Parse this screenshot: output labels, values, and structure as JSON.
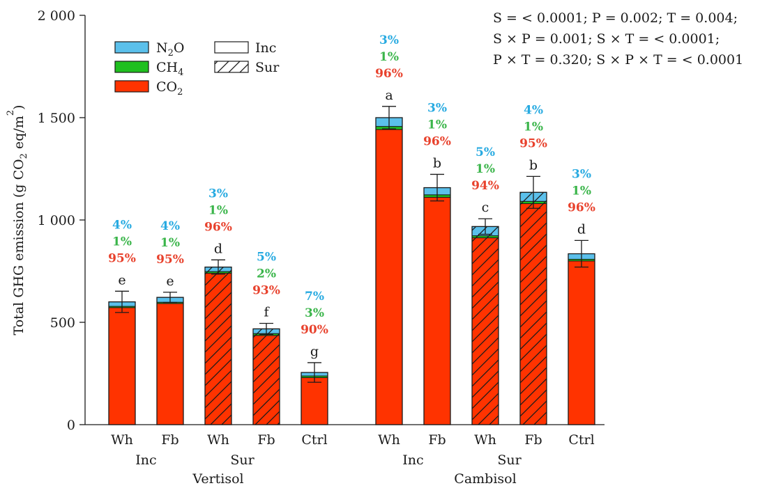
{
  "chart_data": {
    "type": "bar",
    "stacked": true,
    "ylabel": "Total GHG emission (g CO2 eq/m2)",
    "ylim": [
      0,
      2000
    ],
    "yticks": [
      0,
      500,
      1000,
      1500,
      2000
    ],
    "ytick_labels": [
      "0",
      "500",
      "1 000",
      "1 500",
      "2 000"
    ],
    "grid": false,
    "legend_position": "top-left",
    "stats_lines": [
      "S = < 0.0001; P = 0.002; T = 0.004;",
      "S × P = 0.001; S × T = < 0.0001;",
      "P × T = 0.320; S × P × T = < 0.0001"
    ],
    "colors": {
      "N2O": "#5bc0eb",
      "CH4": "#1fbf1f",
      "CO2": "#ff3300"
    },
    "legend": {
      "gases": [
        {
          "key": "N2O",
          "base": "N",
          "sub": "2",
          "tail": "O"
        },
        {
          "key": "CH4",
          "base": "CH",
          "sub": "4",
          "tail": ""
        },
        {
          "key": "CO2",
          "base": "CO",
          "sub": "2",
          "tail": ""
        }
      ],
      "patterns": [
        {
          "key": "inc",
          "label": "Inc",
          "hatched": false
        },
        {
          "key": "sur",
          "label": "Sur",
          "hatched": true
        }
      ]
    },
    "soils": [
      {
        "name": "Vertisol",
        "treatments": [
          "Inc",
          "Sur"
        ],
        "bars": [
          {
            "label": "Wh",
            "treatment": "Inc",
            "total": 600,
            "co2": 572,
            "ch4": 6,
            "n2o": 22,
            "error": 52,
            "letter": "e",
            "pct_n2o": "4%",
            "pct_ch4": "1%",
            "pct_co2": "95%"
          },
          {
            "label": "Fb",
            "treatment": "Inc",
            "total": 622,
            "co2": 592,
            "ch4": 6,
            "n2o": 24,
            "error": 25,
            "letter": "e",
            "pct_n2o": "4%",
            "pct_ch4": "1%",
            "pct_co2": "95%"
          },
          {
            "label": "Wh",
            "treatment": "Sur",
            "total": 770,
            "co2": 740,
            "ch4": 8,
            "n2o": 22,
            "error": 35,
            "letter": "d",
            "pct_n2o": "3%",
            "pct_ch4": "1%",
            "pct_co2": "96%"
          },
          {
            "label": "Fb",
            "treatment": "Sur",
            "total": 468,
            "co2": 436,
            "ch4": 9,
            "n2o": 23,
            "error": 27,
            "letter": "f",
            "pct_n2o": "5%",
            "pct_ch4": "2%",
            "pct_co2": "93%"
          },
          {
            "label": "Ctrl",
            "treatment": "Inc",
            "total": 255,
            "co2": 230,
            "ch4": 8,
            "n2o": 17,
            "error": 48,
            "letter": "g",
            "pct_n2o": "7%",
            "pct_ch4": "3%",
            "pct_co2": "90%"
          }
        ]
      },
      {
        "name": "Cambisol",
        "treatments": [
          "Inc",
          "Sur"
        ],
        "bars": [
          {
            "label": "Wh",
            "treatment": "Inc",
            "total": 1500,
            "co2": 1442,
            "ch4": 15,
            "n2o": 43,
            "error": 55,
            "letter": "a",
            "pct_n2o": "3%",
            "pct_ch4": "1%",
            "pct_co2": "96%"
          },
          {
            "label": "Fb",
            "treatment": "Inc",
            "total": 1158,
            "co2": 1111,
            "ch4": 12,
            "n2o": 35,
            "error": 65,
            "letter": "b",
            "pct_n2o": "3%",
            "pct_ch4": "1%",
            "pct_co2": "96%"
          },
          {
            "label": "Wh",
            "treatment": "Sur",
            "total": 968,
            "co2": 913,
            "ch4": 10,
            "n2o": 45,
            "error": 38,
            "letter": "c",
            "pct_n2o": "5%",
            "pct_ch4": "1%",
            "pct_co2": "94%"
          },
          {
            "label": "Fb",
            "treatment": "Sur",
            "total": 1135,
            "co2": 1080,
            "ch4": 11,
            "n2o": 44,
            "error": 78,
            "letter": "b",
            "pct_n2o": "4%",
            "pct_ch4": "1%",
            "pct_co2": "95%"
          },
          {
            "label": "Ctrl",
            "treatment": "Inc",
            "total": 835,
            "co2": 800,
            "ch4": 8,
            "n2o": 27,
            "error": 65,
            "letter": "d",
            "pct_n2o": "3%",
            "pct_ch4": "1%",
            "pct_co2": "96%"
          }
        ]
      }
    ]
  }
}
